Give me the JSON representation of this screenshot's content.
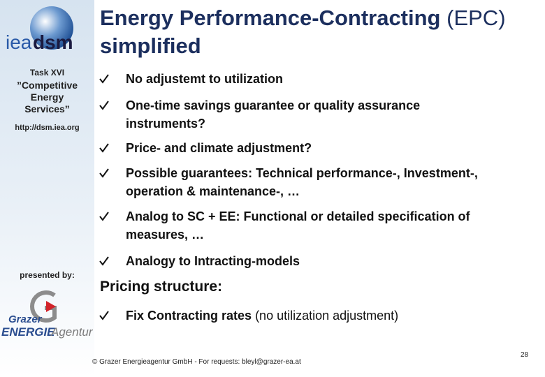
{
  "sidebar": {
    "logo": {
      "part1": "iea",
      "part2": "dsm"
    },
    "task": "Task XVI",
    "subtitle_lines": [
      "”Competitive",
      "Energy",
      "Services”"
    ],
    "url": "http://dsm.iea.org",
    "presented_by": "presented by:",
    "partner_logo": {
      "line1": "Grazer",
      "line2a": "ENERGIE",
      "line2b": "Agentur"
    }
  },
  "title": {
    "bold": "Energy Performance-Contracting",
    "normal": "(EPC)",
    "line2": "simplified"
  },
  "bullets": [
    {
      "lines": [
        "No adjustemt to utilization"
      ]
    },
    {
      "lines": [
        "One-time savings guarantee or quality assurance",
        "instruments?"
      ]
    },
    {
      "lines": [
        "Price- and climate adjustment?"
      ]
    },
    {
      "lines": [
        "Possible guarantees: Technical performance-, Investment-,",
        "operation & maintenance-, …"
      ]
    },
    {
      "lines": [
        "Analog to SC + EE: Functional or detailed specification of",
        "measures, …"
      ]
    },
    {
      "lines": [
        "Analogy to Intracting-models"
      ]
    }
  ],
  "section": "Pricing structure:",
  "section_bullet": {
    "bold": "Fix Contracting rates",
    "normal": "(no utilization adjustment)"
  },
  "footer": "© Grazer Energieagentur GmbH - For requests: bleyl@grazer-ea.at",
  "page_number": "28"
}
